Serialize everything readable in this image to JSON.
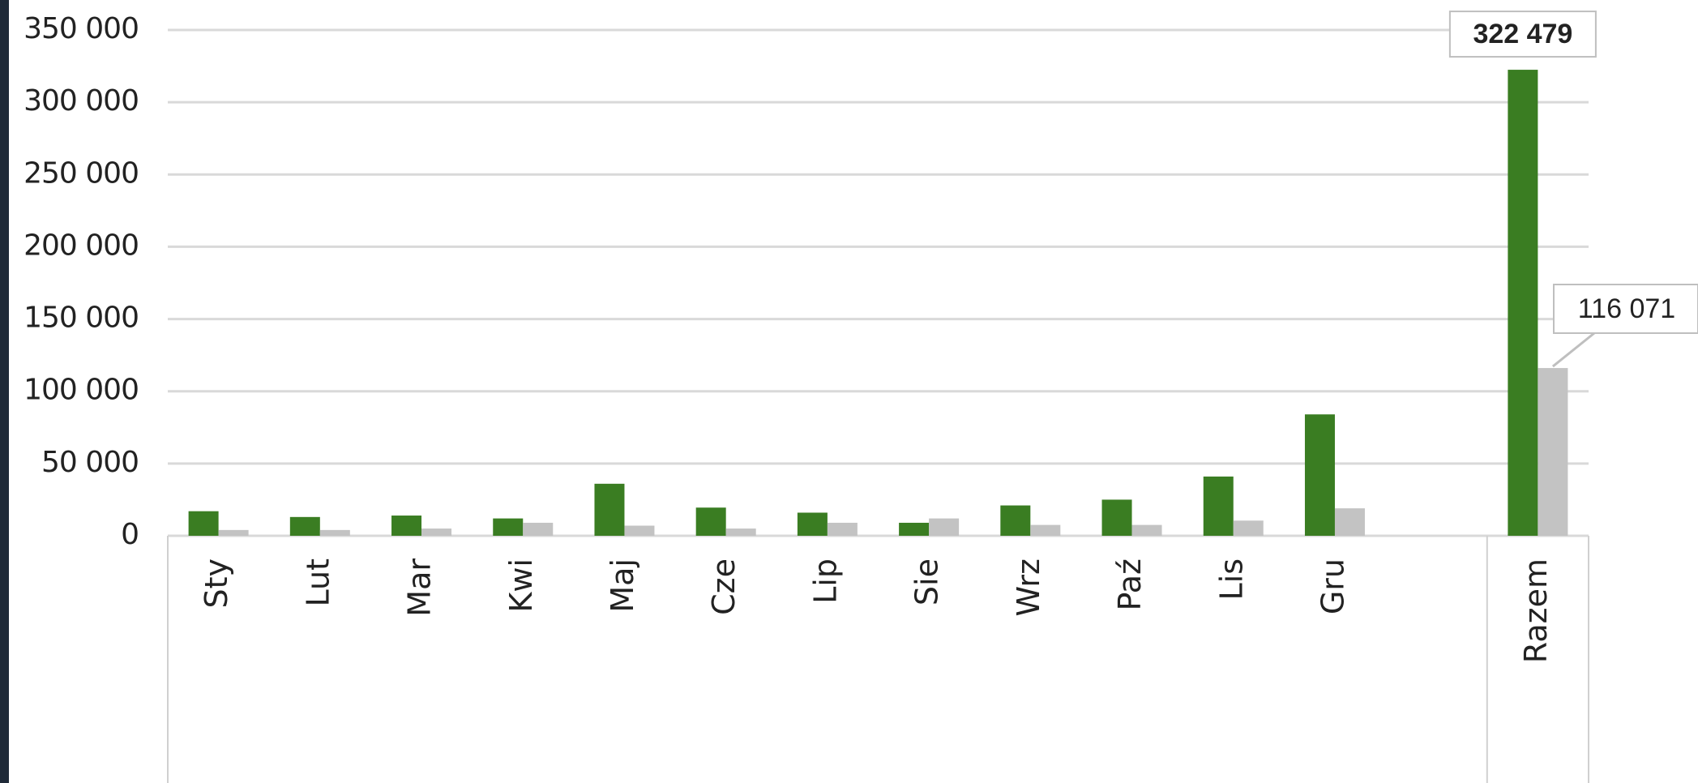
{
  "chart_data": {
    "type": "bar",
    "categories": [
      "Sty",
      "Lut",
      "Mar",
      "Kwi",
      "Maj",
      "Cze",
      "Lip",
      "Sie",
      "Wrz",
      "Paź",
      "Lis",
      "Gru",
      null,
      "Razem"
    ],
    "series": [
      {
        "color": "#3a7d22",
        "values": [
          17000,
          13000,
          14000,
          12000,
          36000,
          19500,
          16000,
          9000,
          21000,
          25000,
          41000,
          84000,
          null,
          322479
        ],
        "value_labels": [
          null,
          null,
          null,
          null,
          null,
          null,
          null,
          null,
          null,
          null,
          null,
          null,
          null,
          "322 479"
        ]
      },
      {
        "color": "#c3c3c3",
        "values": [
          4000,
          4000,
          5000,
          9000,
          7000,
          5000,
          9000,
          12000,
          7500,
          7500,
          10500,
          19000,
          null,
          116071
        ],
        "value_labels": [
          null,
          null,
          null,
          null,
          null,
          null,
          null,
          null,
          null,
          null,
          null,
          null,
          null,
          "116 071"
        ]
      }
    ],
    "ylim": [
      0,
      350000
    ],
    "yticks": [
      0,
      {
        "value": 50000,
        "label": "50 000"
      },
      {
        "value": 100000,
        "label": "100 000"
      },
      {
        "value": 150000,
        "label": "150 000"
      },
      {
        "value": 200000,
        "label": "200 000"
      },
      {
        "value": 250000,
        "label": "250 000"
      },
      {
        "value": 300000,
        "label": "300 000"
      },
      {
        "value": 350000,
        "label": "350 000"
      }
    ],
    "grid": true
  }
}
